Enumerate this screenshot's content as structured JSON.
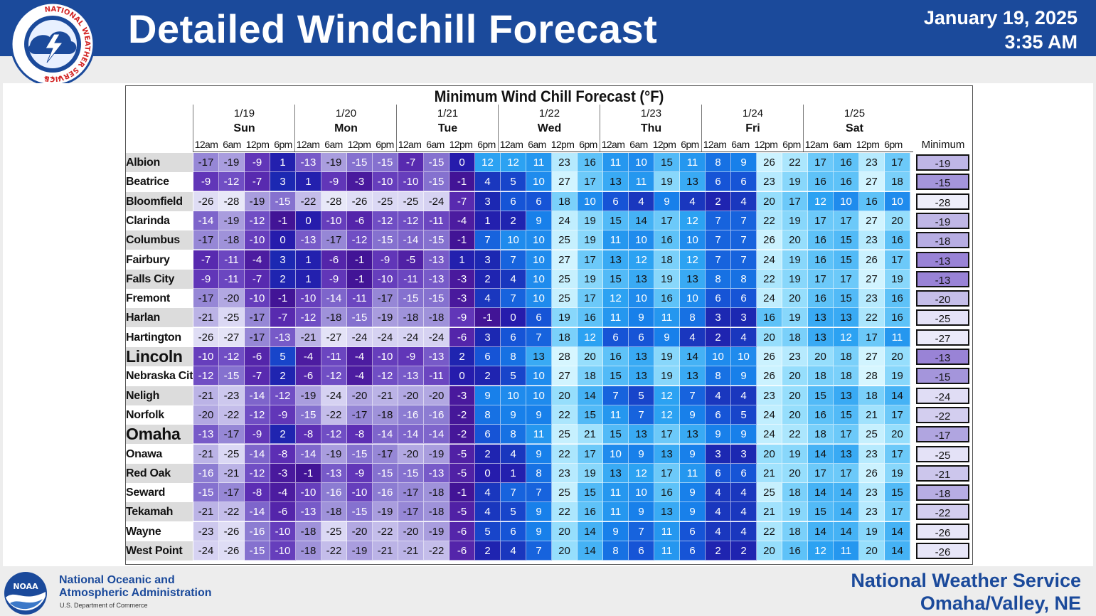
{
  "header": {
    "title": "Detailed Windchill Forecast",
    "date": "January 19, 2025",
    "time": "3:35 AM",
    "logo_text": "NATIONAL WEATHER SERVICE"
  },
  "footer": {
    "noaa_line1": "National Oceanic and",
    "noaa_line2": "Atmospheric Administration",
    "noaa_dept": "U.S. Department of Commerce",
    "office_line1": "National Weather Service",
    "office_line2": "Omaha/Valley, NE",
    "noaa_logo_text": "NOAA"
  },
  "chart_data": {
    "type": "table",
    "title": "Minimum Wind Chill Forecast (°F)",
    "days": [
      {
        "date": "1/19",
        "day": "Sun"
      },
      {
        "date": "1/20",
        "day": "Mon"
      },
      {
        "date": "1/21",
        "day": "Tue"
      },
      {
        "date": "1/22",
        "day": "Wed"
      },
      {
        "date": "1/23",
        "day": "Thu"
      },
      {
        "date": "1/24",
        "day": "Fri"
      },
      {
        "date": "1/25",
        "day": "Sat"
      }
    ],
    "times": [
      "12am",
      "6am",
      "12pm",
      "6pm"
    ],
    "minimum_header": "Minimum",
    "rows": [
      {
        "location": "Albion",
        "values": [
          -17,
          -19,
          -9,
          1,
          -13,
          -19,
          -15,
          -15,
          -7,
          -15,
          0,
          12,
          12,
          11,
          23,
          16,
          11,
          10,
          15,
          11,
          8,
          9,
          26,
          22,
          17,
          16,
          23,
          17
        ],
        "minimum": -19
      },
      {
        "location": "Beatrice",
        "values": [
          -9,
          -12,
          -7,
          3,
          1,
          -9,
          -3,
          -10,
          -10,
          -15,
          -1,
          4,
          5,
          10,
          27,
          17,
          13,
          11,
          19,
          13,
          6,
          6,
          23,
          19,
          16,
          16,
          27,
          18
        ],
        "minimum": -15
      },
      {
        "location": "Bloomfield",
        "values": [
          -26,
          -28,
          -19,
          -15,
          -22,
          -28,
          -26,
          -25,
          -25,
          -24,
          -7,
          3,
          6,
          6,
          18,
          10,
          6,
          4,
          9,
          4,
          2,
          4,
          20,
          17,
          12,
          10,
          16,
          10
        ],
        "minimum": -28
      },
      {
        "location": "Clarinda",
        "values": [
          -14,
          -19,
          -12,
          -1,
          0,
          -10,
          -6,
          -12,
          -12,
          -11,
          -4,
          1,
          2,
          9,
          24,
          19,
          15,
          14,
          17,
          12,
          7,
          7,
          22,
          19,
          17,
          17,
          27,
          20
        ],
        "minimum": -19
      },
      {
        "location": "Columbus",
        "values": [
          -17,
          -18,
          -10,
          0,
          -13,
          -17,
          -12,
          -15,
          -14,
          -15,
          -1,
          7,
          10,
          10,
          25,
          19,
          11,
          10,
          16,
          10,
          7,
          7,
          26,
          20,
          16,
          15,
          23,
          16
        ],
        "minimum": -18
      },
      {
        "location": "Fairbury",
        "values": [
          -7,
          -11,
          -4,
          3,
          1,
          -6,
          -1,
          -9,
          -5,
          -13,
          1,
          3,
          7,
          10,
          27,
          17,
          13,
          12,
          18,
          12,
          7,
          7,
          24,
          19,
          16,
          15,
          26,
          17
        ],
        "minimum": -13
      },
      {
        "location": "Falls City",
        "values": [
          -9,
          -11,
          -7,
          2,
          1,
          -9,
          -1,
          -10,
          -11,
          -13,
          -3,
          2,
          4,
          10,
          25,
          19,
          15,
          13,
          19,
          13,
          8,
          8,
          22,
          19,
          17,
          17,
          27,
          19
        ],
        "minimum": -13
      },
      {
        "location": "Fremont",
        "values": [
          -17,
          -20,
          -10,
          -1,
          -10,
          -14,
          -11,
          -17,
          -15,
          -15,
          -3,
          4,
          7,
          10,
          25,
          17,
          12,
          10,
          16,
          10,
          6,
          6,
          24,
          20,
          16,
          15,
          23,
          16
        ],
        "minimum": -20
      },
      {
        "location": "Harlan",
        "values": [
          -21,
          -25,
          -17,
          -7,
          -12,
          -18,
          -15,
          -19,
          -18,
          -18,
          -9,
          -1,
          0,
          6,
          19,
          16,
          11,
          9,
          11,
          8,
          3,
          3,
          16,
          19,
          13,
          13,
          22,
          16
        ],
        "minimum": -25
      },
      {
        "location": "Hartington",
        "values": [
          -26,
          -27,
          -17,
          -13,
          -21,
          -27,
          -24,
          -24,
          -24,
          -24,
          -6,
          3,
          6,
          7,
          18,
          12,
          6,
          6,
          9,
          4,
          2,
          4,
          20,
          18,
          13,
          12,
          17,
          11
        ],
        "minimum": -27
      },
      {
        "location": "Lincoln",
        "big": true,
        "values": [
          -10,
          -12,
          -6,
          5,
          -4,
          -11,
          -4,
          -10,
          -9,
          -13,
          2,
          6,
          8,
          13,
          28,
          20,
          16,
          13,
          19,
          14,
          10,
          10,
          26,
          23,
          20,
          18,
          27,
          20
        ],
        "minimum": -13
      },
      {
        "location": "Nebraska City",
        "values": [
          -12,
          -15,
          -7,
          2,
          -6,
          -12,
          -4,
          -12,
          -13,
          -11,
          0,
          2,
          5,
          10,
          27,
          18,
          15,
          13,
          19,
          13,
          8,
          9,
          26,
          20,
          18,
          18,
          28,
          19
        ],
        "minimum": -15
      },
      {
        "location": "Neligh",
        "values": [
          -21,
          -23,
          -14,
          -12,
          -19,
          -24,
          -20,
          -21,
          -20,
          -20,
          -3,
          9,
          10,
          10,
          20,
          14,
          7,
          5,
          12,
          7,
          4,
          4,
          23,
          20,
          15,
          13,
          18,
          14
        ],
        "minimum": -24
      },
      {
        "location": "Norfolk",
        "values": [
          -20,
          -22,
          -12,
          -9,
          -15,
          -22,
          -17,
          -18,
          -16,
          -16,
          -2,
          8,
          9,
          9,
          22,
          15,
          11,
          7,
          12,
          9,
          6,
          5,
          24,
          20,
          16,
          15,
          21,
          17
        ],
        "minimum": -22
      },
      {
        "location": "Omaha",
        "big": true,
        "values": [
          -13,
          -17,
          -9,
          2,
          -8,
          -12,
          -8,
          -14,
          -14,
          -14,
          -2,
          6,
          8,
          11,
          25,
          21,
          15,
          13,
          17,
          13,
          9,
          9,
          24,
          22,
          18,
          17,
          25,
          20
        ],
        "minimum": -17
      },
      {
        "location": "Onawa",
        "values": [
          -21,
          -25,
          -14,
          -8,
          -14,
          -19,
          -15,
          -17,
          -20,
          -19,
          -5,
          2,
          4,
          9,
          22,
          17,
          10,
          9,
          13,
          9,
          3,
          3,
          20,
          19,
          14,
          13,
          23,
          17
        ],
        "minimum": -25
      },
      {
        "location": "Red Oak",
        "values": [
          -16,
          -21,
          -12,
          -3,
          -1,
          -13,
          -9,
          -15,
          -15,
          -13,
          -5,
          0,
          1,
          8,
          23,
          19,
          13,
          12,
          17,
          11,
          6,
          6,
          21,
          20,
          17,
          17,
          26,
          19
        ],
        "minimum": -21
      },
      {
        "location": "Seward",
        "values": [
          -15,
          -17,
          -8,
          -4,
          -10,
          -16,
          -10,
          -16,
          -17,
          -18,
          -1,
          4,
          7,
          7,
          25,
          15,
          11,
          10,
          16,
          9,
          4,
          4,
          25,
          18,
          14,
          14,
          23,
          15
        ],
        "minimum": -18
      },
      {
        "location": "Tekamah",
        "values": [
          -21,
          -22,
          -14,
          -6,
          -13,
          -18,
          -15,
          -19,
          -17,
          -18,
          -5,
          4,
          5,
          9,
          22,
          16,
          11,
          9,
          13,
          9,
          4,
          4,
          21,
          19,
          15,
          14,
          23,
          17
        ],
        "minimum": -22
      },
      {
        "location": "Wayne",
        "values": [
          -23,
          -26,
          -16,
          -10,
          -18,
          -25,
          -20,
          -22,
          -20,
          -19,
          -6,
          5,
          6,
          9,
          20,
          14,
          9,
          7,
          11,
          6,
          4,
          4,
          22,
          18,
          14,
          14,
          19,
          14
        ],
        "minimum": -26
      },
      {
        "location": "West Point",
        "values": [
          -24,
          -26,
          -15,
          -10,
          -18,
          -22,
          -19,
          -21,
          -21,
          -22,
          -6,
          2,
          4,
          7,
          20,
          14,
          8,
          6,
          11,
          6,
          2,
          2,
          20,
          16,
          12,
          11,
          20,
          14
        ],
        "minimum": -26
      }
    ]
  }
}
